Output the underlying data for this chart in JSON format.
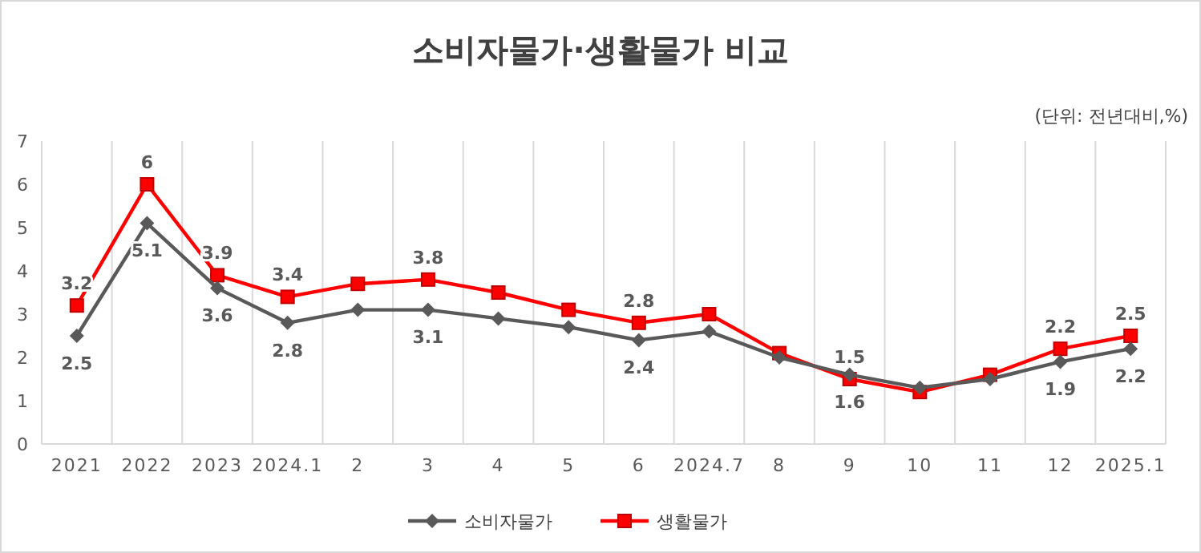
{
  "chart_data": {
    "type": "line",
    "title": "소비자물가·생활물가 비교",
    "annotations": [
      "(단위: 전년대비,%)"
    ],
    "categories": [
      "2021",
      "2022",
      "2023",
      "2024.1",
      "2",
      "3",
      "4",
      "5",
      "6",
      "2024.7",
      "8",
      "9",
      "10",
      "11",
      "12",
      "2025.1"
    ],
    "series": [
      {
        "name": "소비자물가",
        "color": "#595959",
        "marker": "diamond",
        "values": [
          2.5,
          5.1,
          3.6,
          2.8,
          3.1,
          3.1,
          2.9,
          2.7,
          2.4,
          2.6,
          2.0,
          1.6,
          1.3,
          1.5,
          1.9,
          2.2
        ],
        "value_labels": [
          "2.5",
          "5.1",
          "3.6",
          "2.8",
          null,
          "3.1",
          null,
          null,
          "2.4",
          null,
          null,
          "1.6",
          null,
          null,
          "1.9",
          "2.2"
        ]
      },
      {
        "name": "생활물가",
        "color": "#ff0000",
        "marker": "square",
        "values": [
          3.2,
          6,
          3.9,
          3.4,
          3.7,
          3.8,
          3.5,
          3.1,
          2.8,
          3.0,
          2.1,
          1.5,
          1.2,
          1.6,
          2.2,
          2.5
        ],
        "value_labels": [
          "3.2",
          "6",
          "3.9",
          "3.4",
          null,
          "3.8",
          null,
          null,
          "2.8",
          null,
          null,
          "1.5",
          null,
          null,
          "2.2",
          "2.5"
        ]
      }
    ],
    "ylim": [
      0,
      7
    ],
    "yticks": [
      0,
      1,
      2,
      3,
      4,
      5,
      6,
      7
    ],
    "grid": "x",
    "legend": "bottom",
    "line_style": "solid"
  }
}
